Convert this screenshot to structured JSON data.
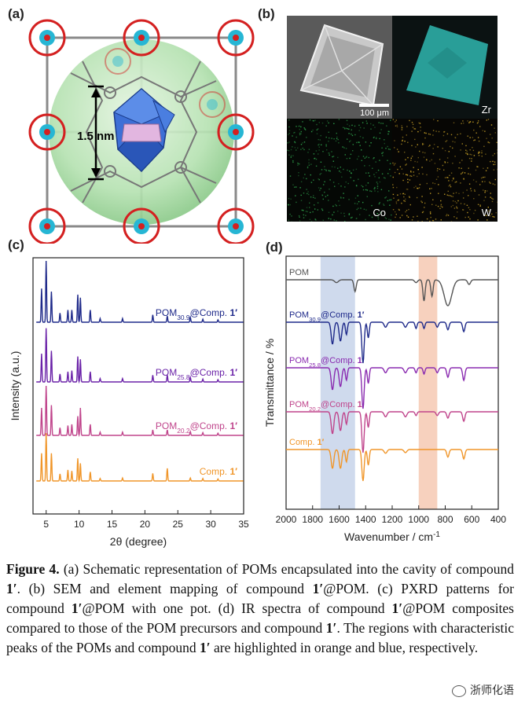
{
  "panels": {
    "a": {
      "label": "(a)",
      "dimension_label": "1.5 nm"
    },
    "b": {
      "label": "(b)",
      "scale_bar": "100 μm",
      "maps": [
        "Zr",
        "Co",
        "W"
      ]
    },
    "c": {
      "label": "(c)"
    },
    "d": {
      "label": "(d)"
    }
  },
  "chart_data": [
    {
      "type": "line",
      "panel": "c",
      "title": "PXRD patterns",
      "xlabel": "2θ (degree)",
      "ylabel": "Intensity (a.u.)",
      "xlim": [
        3,
        35
      ],
      "xticks": [
        5,
        10,
        15,
        20,
        25,
        30,
        35
      ],
      "series": [
        {
          "name": "POM30.9@Comp. 1′",
          "label_main": "POM",
          "label_sub": "30.9",
          "label_tail": "@Comp. ",
          "label_bold": "1′",
          "color": "#1f2a8a",
          "peaks": [
            [
              4.3,
              0.55
            ],
            [
              5.0,
              1.0
            ],
            [
              5.8,
              0.5
            ],
            [
              7.1,
              0.15
            ],
            [
              8.3,
              0.2
            ],
            [
              8.9,
              0.2
            ],
            [
              9.8,
              0.45
            ],
            [
              10.2,
              0.4
            ],
            [
              11.7,
              0.2
            ],
            [
              13.2,
              0.06
            ],
            [
              16.6,
              0.06
            ],
            [
              21.2,
              0.12
            ],
            [
              23.4,
              0.1
            ],
            [
              26.9,
              0.08
            ],
            [
              28.8,
              0.05
            ],
            [
              31.1,
              0.04
            ]
          ]
        },
        {
          "name": "POM25.8@Comp. 1′",
          "label_main": "POM",
          "label_sub": "25.8",
          "label_tail": "@Comp. ",
          "label_bold": "1′",
          "color": "#6a22a8",
          "peaks": [
            [
              4.3,
              0.5
            ],
            [
              5.0,
              0.95
            ],
            [
              5.8,
              0.55
            ],
            [
              7.1,
              0.14
            ],
            [
              8.3,
              0.18
            ],
            [
              8.9,
              0.2
            ],
            [
              9.8,
              0.45
            ],
            [
              10.2,
              0.4
            ],
            [
              11.7,
              0.18
            ],
            [
              13.2,
              0.06
            ],
            [
              16.6,
              0.06
            ],
            [
              21.2,
              0.12
            ],
            [
              23.4,
              0.12
            ],
            [
              26.9,
              0.08
            ],
            [
              28.8,
              0.05
            ],
            [
              31.1,
              0.04
            ]
          ]
        },
        {
          "name": "POM20.2@Comp. 1′",
          "label_main": "POM",
          "label_sub": "20.2",
          "label_tail": "@Comp. ",
          "label_bold": "1′",
          "color": "#c0458c",
          "peaks": [
            [
              4.3,
              0.5
            ],
            [
              5.0,
              0.9
            ],
            [
              5.8,
              0.55
            ],
            [
              7.1,
              0.14
            ],
            [
              8.3,
              0.18
            ],
            [
              8.9,
              0.2
            ],
            [
              9.8,
              0.35
            ],
            [
              10.2,
              0.5
            ],
            [
              11.7,
              0.2
            ],
            [
              13.2,
              0.06
            ],
            [
              16.6,
              0.06
            ],
            [
              21.2,
              0.1
            ],
            [
              23.4,
              0.1
            ],
            [
              26.9,
              0.07
            ],
            [
              28.8,
              0.05
            ],
            [
              31.1,
              0.04
            ]
          ]
        },
        {
          "name": "Comp. 1′",
          "label_main": "Comp. ",
          "label_sub": "",
          "label_tail": "",
          "label_bold": "1′",
          "color": "#f0962a",
          "peaks": [
            [
              4.3,
              0.55
            ],
            [
              5.0,
              0.95
            ],
            [
              5.8,
              0.55
            ],
            [
              7.1,
              0.14
            ],
            [
              8.3,
              0.22
            ],
            [
              8.9,
              0.2
            ],
            [
              9.8,
              0.45
            ],
            [
              10.2,
              0.35
            ],
            [
              11.7,
              0.18
            ],
            [
              13.2,
              0.05
            ],
            [
              16.6,
              0.06
            ],
            [
              21.2,
              0.15
            ],
            [
              23.4,
              0.25
            ],
            [
              26.9,
              0.06
            ],
            [
              28.8,
              0.05
            ],
            [
              31.1,
              0.04
            ]
          ]
        }
      ]
    },
    {
      "type": "line",
      "panel": "d",
      "title": "IR spectra",
      "xlabel": "Wavenumber / cm",
      "xlabel_sup": "-1",
      "ylabel": "Transmittance / %",
      "xlim": [
        2000,
        400
      ],
      "xticks": [
        2000,
        1800,
        1600,
        1400,
        1200,
        1000,
        800,
        600,
        400
      ],
      "highlight_regions": [
        {
          "name": "compound 1′ region",
          "range": [
            1740,
            1480
          ],
          "color": "#c7d3ea"
        },
        {
          "name": "POM region",
          "range": [
            1000,
            860
          ],
          "color": "#f6c9b3"
        }
      ],
      "series": [
        {
          "name": "POM",
          "label_main": "POM",
          "label_sub": "",
          "label_tail": "",
          "label_bold": "",
          "color": "#555555",
          "bands": [
            [
              1620,
              0.06,
              20
            ],
            [
              1480,
              0.25,
              12
            ],
            [
              1020,
              0.06,
              15
            ],
            [
              960,
              0.45,
              12
            ],
            [
              900,
              0.35,
              12
            ],
            [
              780,
              0.55,
              40
            ],
            [
              620,
              0.1,
              15
            ]
          ]
        },
        {
          "name": "POM30.9@Comp. 1′",
          "label_main": "POM",
          "label_sub": "30.9",
          "label_tail": "@Comp. ",
          "label_bold": "1′",
          "color": "#1f2a8a",
          "bands": [
            [
              1650,
              0.35,
              14
            ],
            [
              1590,
              0.3,
              14
            ],
            [
              1545,
              0.2,
              10
            ],
            [
              1420,
              0.65,
              12
            ],
            [
              1380,
              0.25,
              10
            ],
            [
              1250,
              0.08,
              15
            ],
            [
              1100,
              0.08,
              15
            ],
            [
              1020,
              0.1,
              10
            ],
            [
              960,
              0.1,
              10
            ],
            [
              860,
              0.08,
              12
            ],
            [
              780,
              0.12,
              12
            ],
            [
              660,
              0.15,
              12
            ]
          ]
        },
        {
          "name": "POM25.8@Comp. 1′",
          "label_main": "POM",
          "label_sub": "25.8",
          "label_tail": "@Comp. ",
          "label_bold": "1",
          "color": "#8a2bb0",
          "bands": [
            [
              1650,
              0.35,
              14
            ],
            [
              1590,
              0.3,
              14
            ],
            [
              1545,
              0.2,
              10
            ],
            [
              1420,
              0.65,
              12
            ],
            [
              1380,
              0.25,
              10
            ],
            [
              1250,
              0.08,
              15
            ],
            [
              1100,
              0.08,
              15
            ],
            [
              1020,
              0.08,
              10
            ],
            [
              960,
              0.1,
              10
            ],
            [
              860,
              0.08,
              12
            ],
            [
              780,
              0.15,
              12
            ],
            [
              660,
              0.2,
              12
            ]
          ]
        },
        {
          "name": "POM20.2@Comp. 1′",
          "label_main": "POM",
          "label_sub": "20.2",
          "label_tail": "@Comp. ",
          "label_bold": "1",
          "color": "#c0458c",
          "bands": [
            [
              1650,
              0.35,
              14
            ],
            [
              1590,
              0.3,
              14
            ],
            [
              1545,
              0.2,
              10
            ],
            [
              1420,
              0.65,
              12
            ],
            [
              1380,
              0.25,
              10
            ],
            [
              1250,
              0.08,
              15
            ],
            [
              1100,
              0.08,
              15
            ],
            [
              1020,
              0.06,
              10
            ],
            [
              860,
              0.06,
              12
            ],
            [
              780,
              0.1,
              12
            ],
            [
              660,
              0.15,
              12
            ]
          ]
        },
        {
          "name": "Comp. 1′",
          "label_main": "Comp. ",
          "label_sub": "",
          "label_tail": "",
          "label_bold": "1′",
          "color": "#f0962a",
          "bands": [
            [
              1650,
              0.3,
              14
            ],
            [
              1590,
              0.3,
              14
            ],
            [
              1545,
              0.2,
              10
            ],
            [
              1420,
              0.5,
              12
            ],
            [
              1380,
              0.25,
              10
            ],
            [
              1250,
              0.06,
              15
            ],
            [
              1100,
              0.05,
              15
            ],
            [
              780,
              0.12,
              12
            ],
            [
              660,
              0.15,
              12
            ]
          ]
        }
      ]
    }
  ],
  "caption": {
    "figure_label": "Figure 4.",
    "parts": [
      {
        "t": " (a) Schematic representation of POMs encapsulated into the cavity of compound ",
        "b": false
      },
      {
        "t": "1′",
        "b": true
      },
      {
        "t": ". (b) SEM and element mapping of compound ",
        "b": false
      },
      {
        "t": "1′",
        "b": true
      },
      {
        "t": "@POM. (c) PXRD patterns for compound ",
        "b": false
      },
      {
        "t": "1′",
        "b": true
      },
      {
        "t": "@POM with one pot. (d) IR spectra of compound ",
        "b": false
      },
      {
        "t": "1′",
        "b": true
      },
      {
        "t": "@POM composites compared to those of the POM precursors and compound ",
        "b": false
      },
      {
        "t": "1′",
        "b": true
      },
      {
        "t": ". The regions with characteristic peaks of the POMs and compound ",
        "b": false
      },
      {
        "t": "1′",
        "b": true
      },
      {
        "t": " are highlighted in orange and blue, respectively.",
        "b": false
      }
    ]
  },
  "watermark": "浙师化语",
  "colors": {
    "sphere": "#a9dba6",
    "zr_map": "#2fb7b0",
    "co_map": "#2ea04a",
    "w_map": "#c9a227",
    "ir_blue_band": "#c7d3ea",
    "ir_orange_band": "#f6c9b3"
  }
}
